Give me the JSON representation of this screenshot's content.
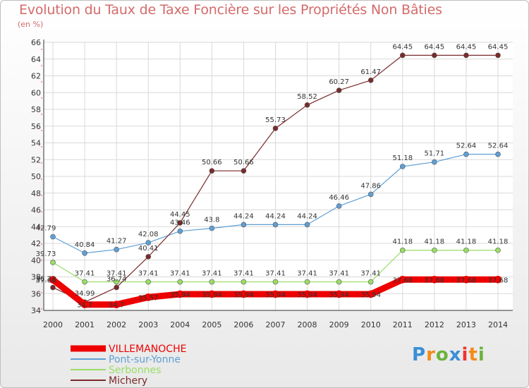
{
  "chart_data": {
    "type": "line",
    "title": "Evolution du Taux de Taxe Foncière sur les Propriétés Non Bâties",
    "unit_label": "(en %)",
    "x": [
      "2000",
      "2001",
      "2002",
      "2003",
      "2004",
      "2005",
      "2006",
      "2007",
      "2008",
      "2009",
      "2010",
      "2011",
      "2012",
      "2013",
      "2014"
    ],
    "ylim": [
      34,
      66
    ],
    "yticks": [
      34,
      36,
      38,
      40,
      42,
      44,
      46,
      48,
      50,
      52,
      54,
      56,
      58,
      60,
      62,
      64,
      66
    ],
    "grid": true,
    "legend_position": "bottom-left",
    "series": [
      {
        "name": "VILLEMANOCHE",
        "color": "#ee0000",
        "values": [
          37.66,
          34.7,
          34.7,
          35.57,
          35.94,
          35.94,
          35.94,
          35.94,
          35.94,
          35.94,
          35.94,
          37.68,
          37.68,
          37.68,
          37.68
        ],
        "labels": [
          "37.66",
          "34.7",
          "34.7",
          "35.57",
          "35.94",
          "35.94",
          "35.94",
          "35.94",
          "35.94",
          "35.94",
          "35.94",
          "37.68",
          "37.68",
          "37.68",
          "37.68"
        ]
      },
      {
        "name": "Pont-sur-Yonne",
        "color": "#5f9fd4",
        "values": [
          42.79,
          40.84,
          41.27,
          42.08,
          43.46,
          43.8,
          44.24,
          44.24,
          44.24,
          46.46,
          47.86,
          51.18,
          51.71,
          52.64,
          52.64
        ],
        "labels": [
          "42.79",
          "40.84",
          "41.27",
          "42.08",
          "43.46",
          "43.8",
          "44.24",
          "44.24",
          "44.24",
          "46.46",
          "47.86",
          "51.18",
          "51.71",
          "52.64",
          "52.64"
        ]
      },
      {
        "name": "Serbonnes",
        "color": "#99dd66",
        "values": [
          39.73,
          37.41,
          37.41,
          37.41,
          37.41,
          37.41,
          37.41,
          37.41,
          37.41,
          37.41,
          37.41,
          41.18,
          41.18,
          41.18,
          41.18
        ],
        "labels": [
          "39.73",
          "37.41",
          "37.41",
          "37.41",
          "37.41",
          "37.41",
          "37.41",
          "37.41",
          "37.41",
          "37.41",
          "37.41",
          "41.18",
          "41.18",
          "41.18",
          "41.18"
        ]
      },
      {
        "name": "Michery",
        "color": "#7a2a2a",
        "values": [
          36.73,
          34.99,
          36.74,
          40.41,
          44.45,
          50.66,
          50.66,
          55.73,
          58.52,
          60.27,
          61.47,
          64.45,
          64.45,
          64.45,
          64.45
        ],
        "labels": [
          "36.73",
          "34.99",
          "36.74",
          "40.41",
          "44.45",
          "50.66",
          "50.66",
          "55.73",
          "58.52",
          "60.27",
          "61.47",
          "64.45",
          "64.45",
          "64.45",
          "64.45"
        ]
      }
    ]
  },
  "logo": {
    "text": "Proxiti"
  }
}
